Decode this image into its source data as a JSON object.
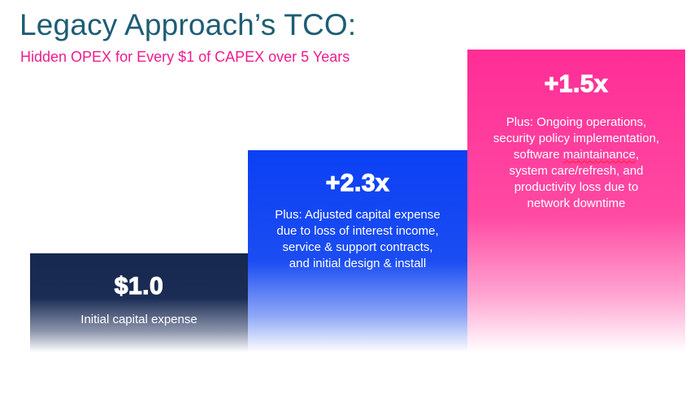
{
  "chart_data": {
    "type": "bar",
    "title": "Legacy Approach’s TCO:",
    "subtitle": "Hidden OPEX for Every $1 of CAPEX over 5 Years",
    "categories": [
      "$1.0",
      "+2.3x",
      "+1.5x"
    ],
    "values": [
      1.0,
      2.3,
      1.5
    ],
    "bars": [
      {
        "value_label": "$1.0",
        "color": "#1b2c55",
        "description": [
          "Initial capital expense"
        ]
      },
      {
        "value_label": "+2.3x",
        "color": "#0b40f4",
        "description": [
          "Plus: Adjusted capital expense",
          "due to loss of interest income,",
          "service & support contracts,",
          "and initial design & install"
        ]
      },
      {
        "value_label": "+1.5x",
        "color": "#ff2d95",
        "description": [
          "Plus: Ongoing operations,",
          "security policy implementation,",
          "software maintainance,",
          "system care/refresh, and",
          "productivity loss due to",
          "network downtime"
        ]
      }
    ],
    "grid": false,
    "legend": "none"
  }
}
